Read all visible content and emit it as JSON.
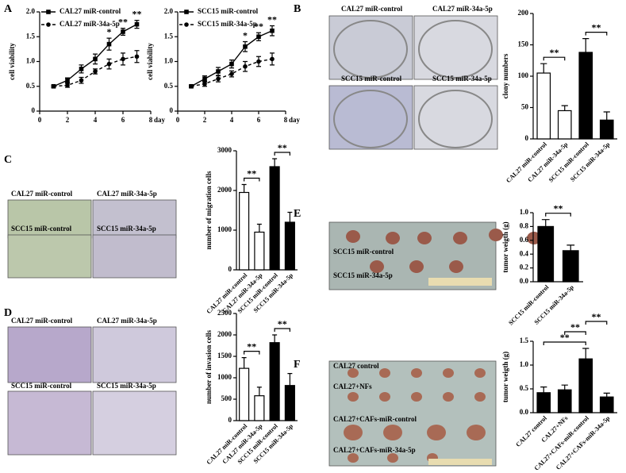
{
  "panel_letters": [
    "A",
    "B",
    "C",
    "D",
    "E",
    "F"
  ],
  "photo_labels": {
    "B": [
      "CAL27 miR-control",
      "CAL27 miR-34a-5p",
      "SCC15 miR-control",
      "SCC15 miR-34a-5p"
    ],
    "C": [
      "CAL27 miR-control",
      "CAL27 miR-34a-5p",
      "SCC15 miR-control",
      "SCC15 miR-34a-5p"
    ],
    "D": [
      "CAL27 miR-control",
      "CAL27 miR-34a-5p",
      "SCC15 miR-control",
      "SCC15 miR-34a-5p"
    ],
    "E": [
      "SCC15 miR-control",
      "SCC15 miR-34a-5p"
    ],
    "F": [
      "CAL27 control",
      "CAL27+NFs",
      "CAL27+CAFs-miR-control",
      "CAL27+CAFs-miR-34a-5p"
    ]
  },
  "chart_data": [
    {
      "type": "line",
      "xlabel": "day",
      "ylabel": "cell viability",
      "x": [
        1,
        2,
        3,
        4,
        5,
        6,
        7
      ],
      "series": [
        {
          "name": "CAL27 miR-control",
          "color": "#000000",
          "dash": false,
          "values": [
            0.5,
            0.62,
            0.85,
            1.05,
            1.35,
            1.6,
            1.75
          ],
          "errors": [
            0.02,
            0.05,
            0.08,
            0.1,
            0.12,
            0.07,
            0.08
          ]
        },
        {
          "name": "CAL27 miR-34a-5p",
          "color": "#000000",
          "dash": true,
          "values": [
            0.5,
            0.52,
            0.62,
            0.8,
            0.95,
            1.05,
            1.1
          ],
          "errors": [
            0.02,
            0.04,
            0.06,
            0.05,
            0.1,
            0.12,
            0.12
          ]
        }
      ],
      "annotations": [
        {
          "text": "*",
          "x": 5
        },
        {
          "text": "**",
          "x": 6
        },
        {
          "text": "**",
          "x": 7
        }
      ],
      "xlim": [
        0,
        8
      ],
      "xticks": [
        0,
        2,
        4,
        6,
        8
      ],
      "ylim": [
        0,
        2
      ],
      "yticks": [
        0,
        0.5,
        {
          "value": 1,
          "label": "1.0"
        },
        1.5,
        {
          "value": 2,
          "label": "2.0"
        }
      ]
    },
    {
      "type": "line",
      "xlabel": "day",
      "ylabel": "cell viability",
      "x": [
        1,
        2,
        3,
        4,
        5,
        6,
        7
      ],
      "series": [
        {
          "name": "SCC15 miR-control",
          "color": "#000000",
          "dash": false,
          "values": [
            0.5,
            0.65,
            0.8,
            0.95,
            1.3,
            1.5,
            1.62
          ],
          "errors": [
            0.02,
            0.06,
            0.08,
            0.08,
            0.1,
            0.08,
            0.1
          ]
        },
        {
          "name": "SCC15 miR-34a-5p",
          "color": "#000000",
          "dash": true,
          "values": [
            0.5,
            0.55,
            0.65,
            0.75,
            0.9,
            1.0,
            1.05
          ],
          "errors": [
            0.02,
            0.05,
            0.06,
            0.06,
            0.1,
            0.1,
            0.12
          ]
        }
      ],
      "annotations": [
        {
          "text": "*",
          "x": 5
        },
        {
          "text": "**",
          "x": 6
        },
        {
          "text": "**",
          "x": 7
        }
      ],
      "xlim": [
        0,
        8
      ],
      "xticks": [
        0,
        2,
        4,
        6,
        8
      ],
      "ylim": [
        0,
        2
      ],
      "yticks": [
        0,
        0.5,
        {
          "value": 1,
          "label": "1.0"
        },
        1.5,
        {
          "value": 2,
          "label": "2.0"
        }
      ]
    },
    {
      "type": "bar",
      "ylabel": "clony numbers",
      "categories": [
        "CAL27 miR-control",
        "CAL27 miR-34a-5p",
        "SCC15 miR-control",
        "SCC15 miR-34a-5p"
      ],
      "values": [
        105,
        45,
        138,
        30
      ],
      "errors": [
        15,
        8,
        22,
        13
      ],
      "colors": [
        "#ffffff",
        "#ffffff",
        "#000000",
        "#000000"
      ],
      "brackets": [
        {
          "text": "**",
          "between": [
            0,
            1
          ]
        },
        {
          "text": "**",
          "between": [
            2,
            3
          ]
        }
      ],
      "ylim": [
        0,
        200
      ],
      "yticks": [
        0,
        50,
        100,
        150,
        200
      ]
    },
    {
      "type": "bar",
      "ylabel": "number of migration cells",
      "categories": [
        "CAL27 miR-control",
        "CAL27 miR-34a-5p",
        "SCC15 miR-control",
        "SCC15 miR-34a-5p"
      ],
      "values": [
        1950,
        950,
        2600,
        1200
      ],
      "errors": [
        200,
        200,
        200,
        250
      ],
      "colors": [
        "#ffffff",
        "#ffffff",
        "#000000",
        "#000000"
      ],
      "brackets": [
        {
          "text": "**",
          "between": [
            0,
            1
          ]
        },
        {
          "text": "**",
          "between": [
            2,
            3
          ]
        }
      ],
      "ylim": [
        0,
        3000
      ],
      "yticks": [
        0,
        1000,
        2000,
        3000
      ]
    },
    {
      "type": "bar",
      "ylabel": "number of invasion cells",
      "categories": [
        "CAL27 miR-control",
        "CAL27 miR-34a-5p",
        "SCC15 miR-control",
        "SCC15 miR-34a-5p"
      ],
      "values": [
        1220,
        580,
        1820,
        820
      ],
      "errors": [
        250,
        200,
        180,
        280
      ],
      "colors": [
        "#ffffff",
        "#ffffff",
        "#000000",
        "#000000"
      ],
      "brackets": [
        {
          "text": "**",
          "between": [
            0,
            1
          ]
        },
        {
          "text": "**",
          "between": [
            2,
            3
          ]
        }
      ],
      "ylim": [
        0,
        2500
      ],
      "yticks": [
        0,
        500,
        1000,
        1500,
        2000,
        2500
      ]
    },
    {
      "type": "bar",
      "ylabel": "tumor weigth (g)",
      "categories": [
        "SCC15 miR-control",
        "SCC15 miR-34a-5p"
      ],
      "values": [
        0.8,
        0.45
      ],
      "errors": [
        0.1,
        0.08
      ],
      "colors": [
        "#000000",
        "#000000"
      ],
      "brackets": [
        {
          "text": "**",
          "between": [
            0,
            1
          ]
        }
      ],
      "ylim": [
        0,
        1
      ],
      "yticks": [
        {
          "value": 0,
          "label": "0.0"
        },
        0.2,
        0.4,
        0.6,
        0.8,
        {
          "value": 1,
          "label": "1.0"
        }
      ]
    },
    {
      "type": "bar",
      "ylabel": "tumor weigth (g)",
      "categories": [
        "CAL27 control",
        "CAL27+NFs",
        "CAL27+CAFs-miR-control",
        "CAL27+CAFs-miR-34a-5p"
      ],
      "values": [
        0.42,
        0.48,
        1.13,
        0.33
      ],
      "errors": [
        0.12,
        0.1,
        0.22,
        0.08
      ],
      "colors": [
        "#000000",
        "#000000",
        "#000000",
        "#000000"
      ],
      "brackets": [
        {
          "text": "**",
          "between": [
            0,
            2
          ]
        },
        {
          "text": "**",
          "between": [
            1,
            2
          ]
        },
        {
          "text": "**",
          "between": [
            2,
            3
          ]
        }
      ],
      "ylim": [
        0,
        1.5
      ],
      "yticks": [
        {
          "value": 0,
          "label": "0.0"
        },
        0.5,
        {
          "value": 1,
          "label": "1.0"
        },
        1.5
      ]
    }
  ]
}
